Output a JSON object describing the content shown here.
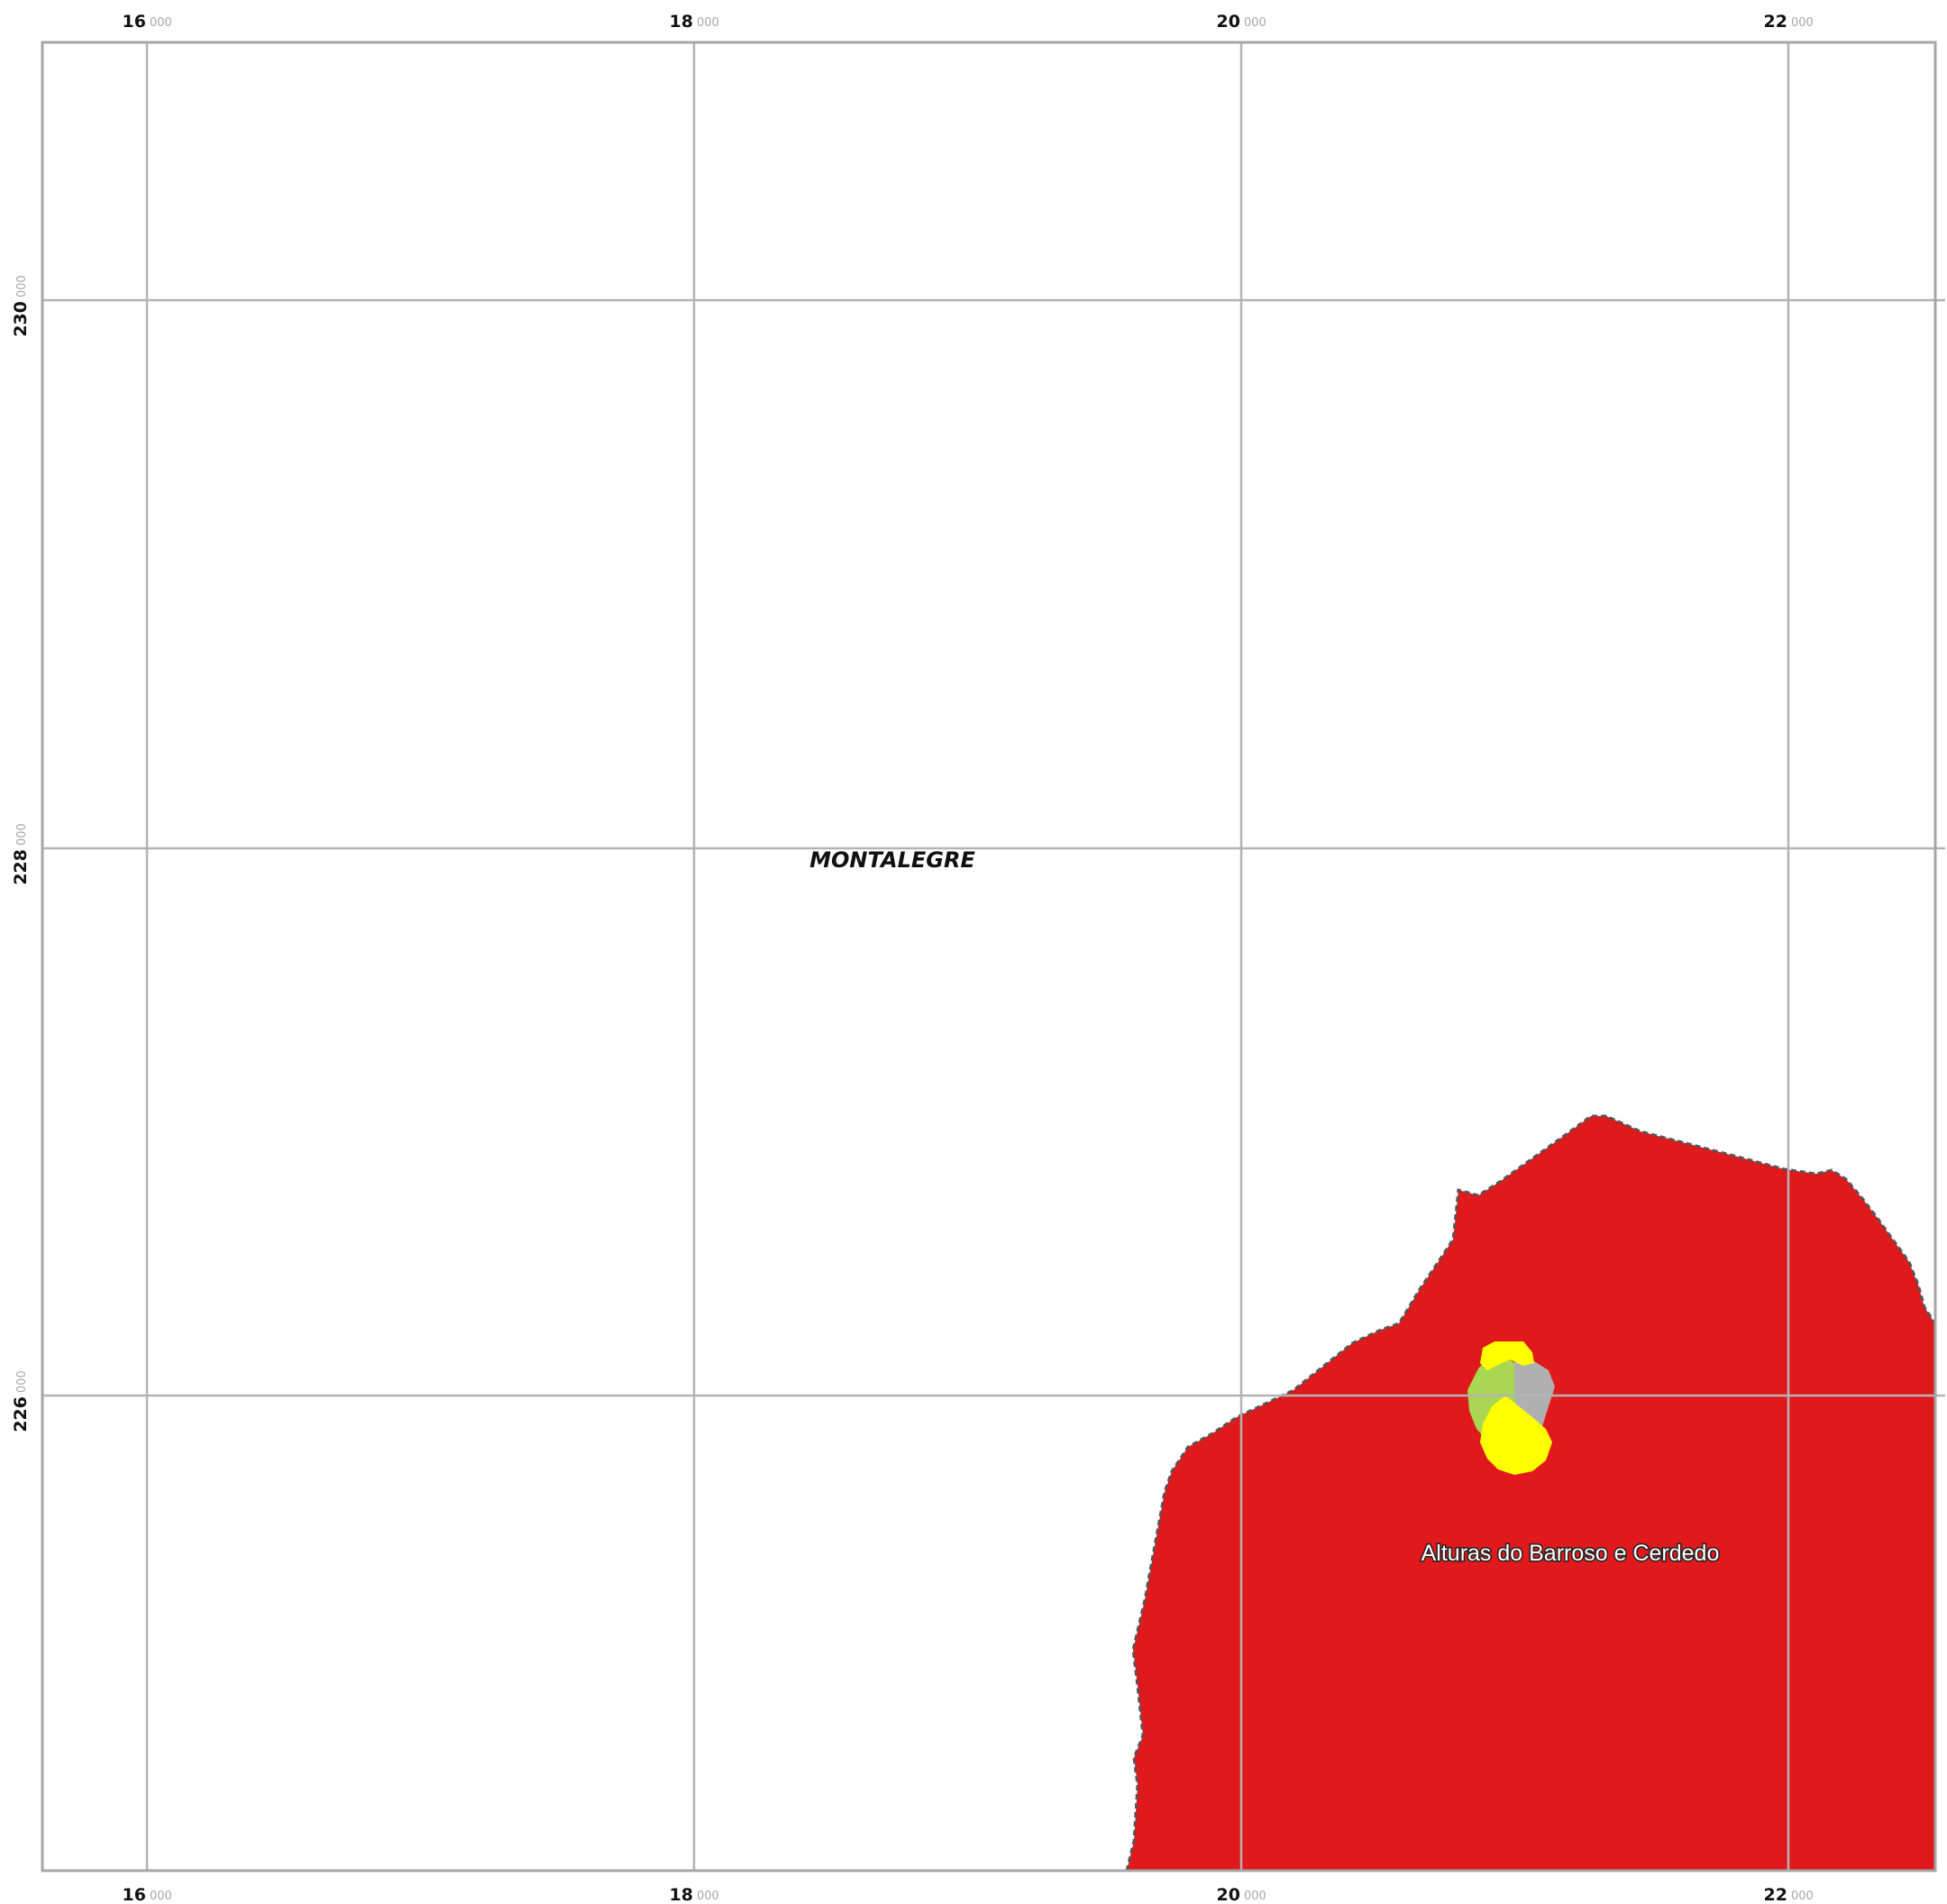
{
  "map": {
    "x_ticks": [
      {
        "major": "16",
        "minor": "000"
      },
      {
        "major": "18",
        "minor": "000"
      },
      {
        "major": "20",
        "minor": "000"
      },
      {
        "major": "22",
        "minor": "000"
      }
    ],
    "y_ticks": [
      {
        "major": "230",
        "minor": "000"
      },
      {
        "major": "228",
        "minor": "000"
      },
      {
        "major": "226",
        "minor": "000"
      }
    ],
    "municipality_label": "MONTALEGRE",
    "parish_label": "Alturas do Barroso e Cerdedo",
    "colors": {
      "parish_fill": "#e0191c",
      "patch_yellow": "#ffff00",
      "patch_green": "#a9d752",
      "patch_grey": "#b0b0b0",
      "gridline": "#b3b3b3",
      "boundary": "#555555"
    }
  }
}
